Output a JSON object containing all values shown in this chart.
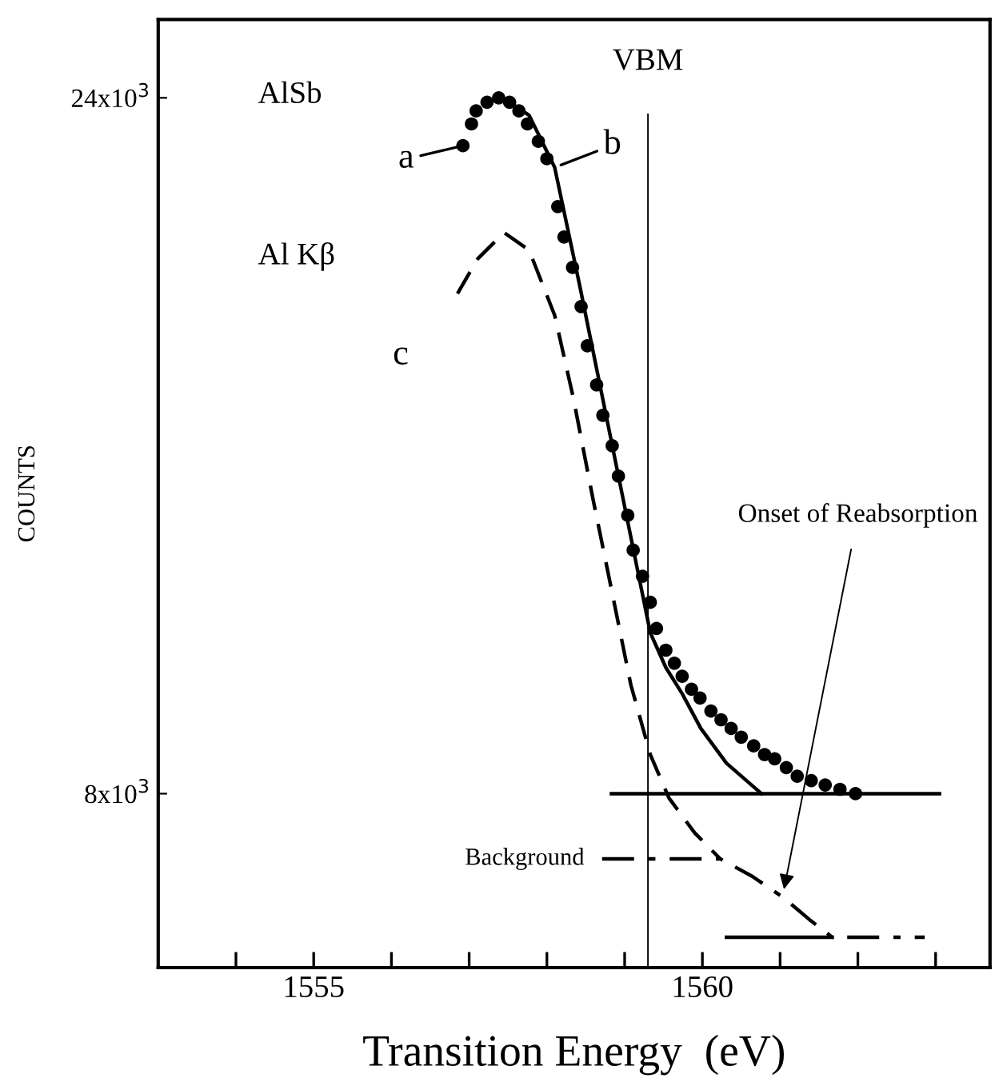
{
  "chart_data": {
    "type": "line",
    "xlabel": "Transition Energy  (eV)",
    "ylabel": "COUNTS",
    "xlim": [
      1553.0,
      1563.7
    ],
    "ylim": [
      4000,
      25800
    ],
    "xticks": [
      {
        "value": 1554,
        "label": null
      },
      1555,
      {
        "value": 1556,
        "label": null
      },
      {
        "value": 1557,
        "label": null
      },
      {
        "value": 1558,
        "label": null
      },
      {
        "value": 1559,
        "label": null
      },
      1560,
      {
        "value": 1561,
        "label": null
      },
      {
        "value": 1562,
        "label": null
      },
      {
        "value": 1563,
        "label": null
      }
    ],
    "yticks": [
      {
        "value": 8000,
        "label": "8x10$^{3}$"
      },
      {
        "value": 24000,
        "label": "24x10$^{3}$"
      }
    ],
    "grid": false,
    "series": [
      {
        "name": "a",
        "type": "scatter",
        "marker": "circle",
        "color": "#000000",
        "x": [
          1556.92,
          1557.03,
          1557.09,
          1557.23,
          1557.38,
          1557.52,
          1557.64,
          1557.75,
          1557.89,
          1558.0,
          1558.14,
          1558.22,
          1558.33,
          1558.44,
          1558.52,
          1558.64,
          1558.72,
          1558.84,
          1558.92,
          1559.04,
          1559.11,
          1559.23,
          1559.33,
          1559.41,
          1559.53,
          1559.64,
          1559.74,
          1559.86,
          1559.97,
          1560.11,
          1560.24,
          1560.37,
          1560.5,
          1560.66,
          1560.8,
          1560.93,
          1561.08,
          1561.22,
          1561.4,
          1561.58,
          1561.77,
          1561.97
        ],
        "values": [
          22900,
          23400,
          23700,
          23900,
          24000,
          23900,
          23700,
          23400,
          23000,
          22600,
          21500,
          20800,
          20100,
          19200,
          18300,
          17400,
          16700,
          16000,
          15300,
          14400,
          13600,
          13000,
          12400,
          11800,
          11300,
          11000,
          10700,
          10400,
          10200,
          9900,
          9700,
          9500,
          9300,
          9100,
          8900,
          8800,
          8600,
          8400,
          8300,
          8200,
          8100,
          8000
        ]
      },
      {
        "name": "b",
        "line_style": "solid",
        "color": "#000000",
        "x": [
          1557.19,
          1557.44,
          1557.77,
          1558.1,
          1558.42,
          1558.75,
          1559.08,
          1559.33,
          1559.53,
          1559.74,
          1559.98,
          1560.31,
          1560.76
        ],
        "values": [
          23900,
          24000,
          23600,
          22400,
          19700,
          16800,
          13900,
          11700,
          10900,
          10300,
          9500,
          8700,
          8000
        ]
      },
      {
        "name": "c",
        "line_style": "dashed",
        "color": "#000000",
        "x": [
          1556.85,
          1557.11,
          1557.45,
          1557.77,
          1558.1,
          1558.34,
          1558.59,
          1558.83,
          1559.08,
          1559.33,
          1559.57,
          1559.9,
          1560.23
        ],
        "values": [
          19500,
          20300,
          20900,
          20500,
          19000,
          17100,
          14800,
          12700,
          10500,
          8900,
          7900,
          7100,
          6500
        ]
      },
      {
        "name": "Background",
        "line_style": "dashdot",
        "color": "#000000",
        "x": [
          1558.71,
          1560.23,
          1560.64,
          1561.05,
          1561.38,
          1561.67,
          1562.86
        ],
        "values": [
          6500,
          6500,
          6100,
          5600,
          5100,
          4700,
          4700
        ]
      },
      {
        "line_style": "solid",
        "color": "#000000",
        "x": [
          1558.83,
          1563.05
        ],
        "values": [
          8000,
          8000
        ]
      },
      {
        "line_style": "solid",
        "color": "#000000",
        "x": [
          1560.31,
          1561.67
        ],
        "values": [
          4700,
          4700
        ]
      }
    ],
    "ref_lines": [
      {
        "axis": "x",
        "value": 1559.3,
        "label": "VBM",
        "color": "#000000"
      }
    ],
    "annotations": [
      "AlSb",
      "Al Kβ",
      {
        "text": "Onset of Reabsorption",
        "x": 1561.05,
        "y": 5800
      }
    ]
  }
}
